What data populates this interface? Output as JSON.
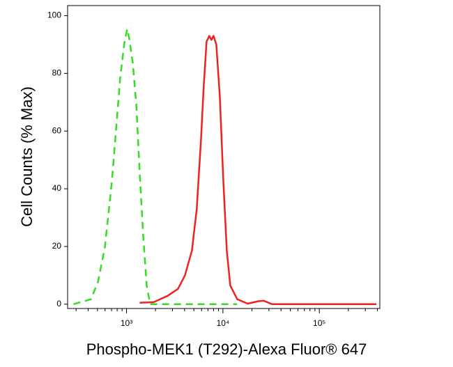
{
  "chart_data": {
    "type": "line",
    "x_label": "Phospho-MEK1 (T292)-Alexa Fluor® 647",
    "y_label": "Cell Counts (% Max)",
    "xscale": "log",
    "xlim": [
      245,
      424000
    ],
    "ylim": [
      -1.5,
      103.5
    ],
    "xticks": [
      {
        "value": 1000,
        "label": "10³"
      },
      {
        "value": 10000,
        "label": "10⁴"
      },
      {
        "value": 100000,
        "label": "10⁵"
      }
    ],
    "xminorticks": [
      300,
      400,
      500,
      600,
      700,
      800,
      900,
      2000,
      3000,
      4000,
      5000,
      6000,
      7000,
      8000,
      9000,
      20000,
      30000,
      40000,
      50000,
      60000,
      70000,
      80000,
      90000,
      200000,
      300000,
      400000
    ],
    "yticks": [
      0,
      20,
      40,
      60,
      80,
      100
    ],
    "series": [
      {
        "color": "#33dd22",
        "dash": true,
        "x": [
          282,
          428,
          506,
          597,
          705,
          805,
          861,
          951,
          1017,
          1069,
          1162,
          1262,
          1371,
          1490,
          1619,
          1758,
          2500,
          14000
        ],
        "values": [
          0,
          1.7,
          7.7,
          19.8,
          42.4,
          66.5,
          78.6,
          90.6,
          95.4,
          92,
          83.6,
          69.4,
          45.3,
          23.6,
          6.5,
          0,
          0,
          0
        ]
      },
      {
        "color": "#ee2222",
        "dash": false,
        "x": [
          1371,
          1914,
          2669,
          3423,
          4040,
          4770,
          5355,
          5925,
          6330,
          6765,
          7225,
          7600,
          7995,
          8540,
          9285,
          10090,
          10970,
          11920,
          14070,
          18040,
          23160,
          26450,
          32270,
          38110,
          390800
        ],
        "values": [
          0.5,
          0.7,
          2.9,
          5.3,
          10,
          18.6,
          33,
          57,
          76,
          91,
          93,
          91.6,
          93,
          90,
          72,
          43,
          18.6,
          6.5,
          1.7,
          0.2,
          1,
          1.2,
          0,
          0,
          0
        ]
      }
    ]
  }
}
